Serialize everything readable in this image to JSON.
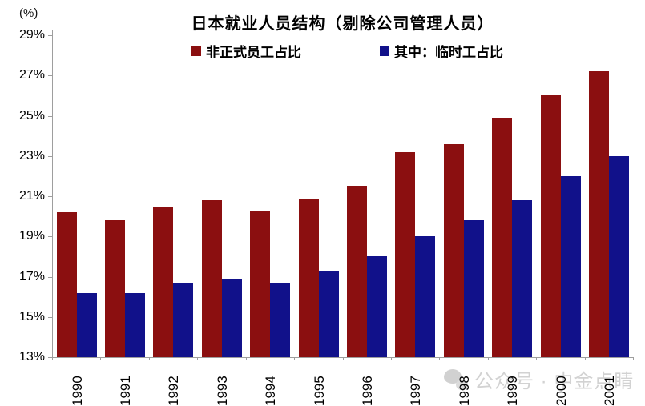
{
  "chart_data": {
    "type": "bar",
    "title": "日本就业人员结构（剔除公司管理人员）",
    "unit_label": "(%)",
    "categories": [
      "1990",
      "1991",
      "1992",
      "1993",
      "1994",
      "1995",
      "1996",
      "1997",
      "1998",
      "1999",
      "2000",
      "2001"
    ],
    "series": [
      {
        "name": "非正式员工占比",
        "color": "#8B0F10",
        "values": [
          20.2,
          19.8,
          20.5,
          20.8,
          20.3,
          20.9,
          21.5,
          23.2,
          23.6,
          24.9,
          26.0,
          27.2
        ]
      },
      {
        "name": "其中：临时工占比",
        "color": "#11118A",
        "values": [
          16.2,
          16.2,
          16.7,
          16.9,
          16.7,
          17.3,
          18.0,
          19.0,
          19.8,
          20.8,
          22.0,
          23.0
        ]
      }
    ],
    "ylim": [
      13,
      29
    ],
    "ytick_step": 2,
    "ytick_labels": [
      "29%",
      "27%",
      "25%",
      "23%",
      "21%",
      "19%",
      "17%",
      "15%",
      "13%"
    ],
    "grid": false,
    "legend_position": "top-center",
    "axis_color": "#9E9E9E"
  },
  "watermark": {
    "icon": "wechat-icon",
    "text": "公众号 · 中金点睛"
  }
}
